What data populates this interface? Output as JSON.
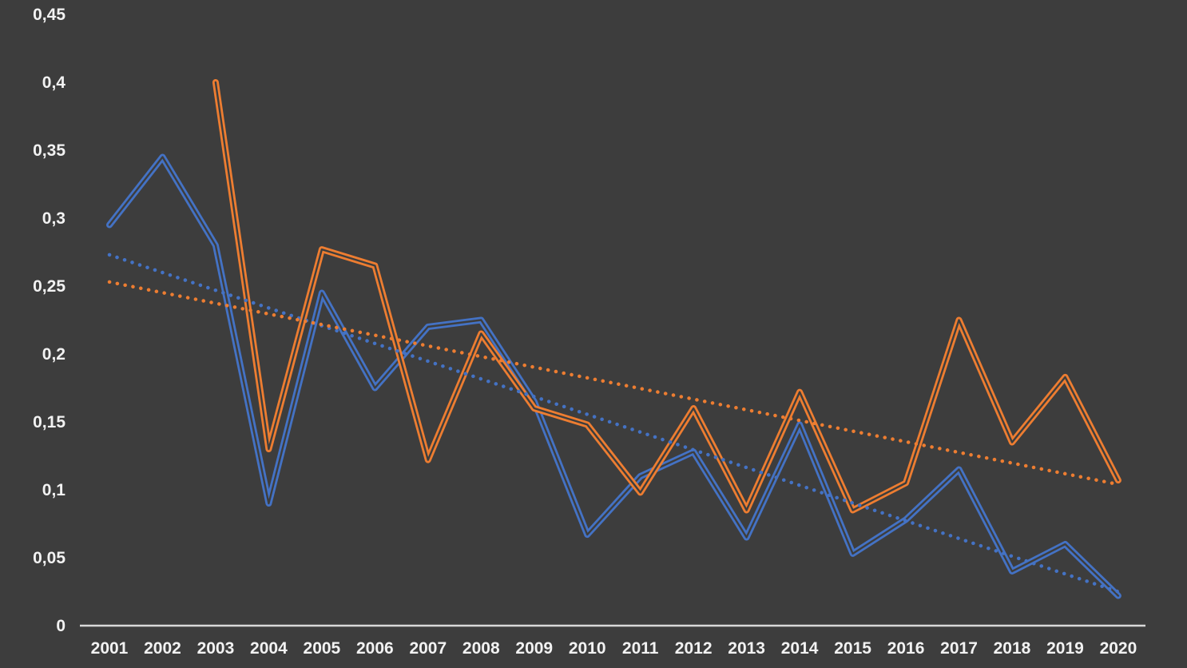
{
  "chart_data": {
    "type": "line",
    "title": "",
    "xlabel": "",
    "ylabel": "",
    "categories": [
      "2001",
      "2002",
      "2003",
      "2004",
      "2005",
      "2006",
      "2007",
      "2008",
      "2009",
      "2010",
      "2011",
      "2012",
      "2013",
      "2014",
      "2015",
      "2016",
      "2017",
      "2018",
      "2019",
      "2020"
    ],
    "series": [
      {
        "name": "blue-series",
        "color": "#4472C4",
        "line_style": "double-line",
        "values": [
          0.295,
          0.345,
          0.28,
          0.09,
          0.245,
          0.175,
          0.22,
          0.225,
          0.165,
          0.067,
          0.11,
          0.128,
          0.065,
          0.148,
          0.053,
          0.078,
          0.115,
          0.04,
          0.06,
          0.022
        ]
      },
      {
        "name": "orange-series",
        "color": "#ED7D31",
        "line_style": "double-line",
        "values": [
          null,
          null,
          0.4,
          0.13,
          0.277,
          0.265,
          0.122,
          0.215,
          0.16,
          0.148,
          0.098,
          0.16,
          0.085,
          0.172,
          0.085,
          0.105,
          0.225,
          0.135,
          0.183,
          0.107
        ]
      }
    ],
    "trendlines": [
      {
        "name": "blue-linear-trendline",
        "color": "#4472C4",
        "style": "dotted",
        "start_value": 0.273,
        "end_value": 0.025
      },
      {
        "name": "orange-linear-trendline",
        "color": "#ED7D31",
        "style": "dotted",
        "start_value": 0.253,
        "end_value": 0.104
      }
    ],
    "ylim": [
      0,
      0.45
    ],
    "ytick_step": 0.05,
    "ytick_labels": [
      "0",
      "0,05",
      "0,1",
      "0,15",
      "0,2",
      "0,25",
      "0,3",
      "0,35",
      "0,4",
      "0,45"
    ],
    "grid": false,
    "legend": false,
    "background": "#3D3D3D",
    "axis_color": "#D9D9D9",
    "label_color": "#F2F2F2"
  }
}
